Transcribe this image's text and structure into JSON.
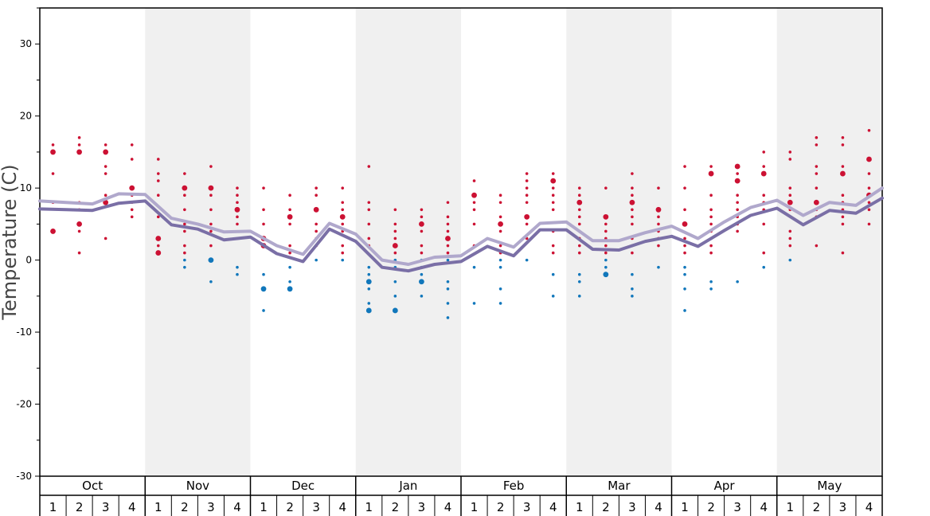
{
  "chart_data": {
    "type": "line",
    "ylabel": "Temperature (C)",
    "ylim": [
      -30,
      35
    ],
    "yticks": [
      30,
      20,
      10,
      0,
      -10,
      -20,
      -30
    ],
    "months": [
      "Oct",
      "Nov",
      "Dec",
      "Jan",
      "Feb",
      "Mar",
      "Apr",
      "May"
    ],
    "weeks": [
      "1",
      "2",
      "3",
      "4"
    ],
    "colors": {
      "upper_line": "#b0a8cc",
      "lower_line": "#7a6fa6",
      "warm_points": "#cc1133",
      "cold_points": "#1177bb",
      "shade": "#f0f0f0"
    },
    "series": [
      {
        "values": [
          8.2,
          8.0,
          7.8,
          9.2,
          9.1,
          5.8,
          5.0,
          3.9,
          4.0,
          2.0,
          0.8,
          5.1,
          3.6,
          0.0,
          -0.6,
          0.4,
          0.6,
          3.0,
          1.8,
          5.1,
          5.3,
          2.7,
          2.7,
          3.8,
          4.7,
          3.0,
          5.3,
          7.3,
          8.3,
          6.2,
          8.0,
          7.6,
          10.0
        ]
      },
      {
        "values": [
          7.1,
          7.0,
          6.9,
          7.9,
          8.2,
          4.9,
          4.3,
          2.8,
          3.2,
          0.9,
          -0.2,
          4.3,
          2.6,
          -1.0,
          -1.5,
          -0.6,
          -0.2,
          1.9,
          0.6,
          4.2,
          4.2,
          1.5,
          1.4,
          2.6,
          3.3,
          1.9,
          4.1,
          6.2,
          7.2,
          4.9,
          6.9,
          6.5,
          8.6
        ]
      }
    ],
    "points": [
      {
        "v": [
          16,
          15,
          12,
          8,
          4
        ],
        "big": [
          15,
          4
        ]
      },
      {
        "v": [
          17,
          16,
          15,
          8,
          7,
          5,
          4,
          1
        ],
        "big": [
          15,
          5
        ]
      },
      {
        "v": [
          16,
          15,
          13,
          12,
          9,
          8,
          3
        ],
        "big": [
          15,
          8
        ]
      },
      {
        "v": [
          16,
          14,
          10,
          9,
          8,
          7,
          6
        ],
        "big": [
          10
        ]
      },
      {
        "v": [
          14,
          12,
          11,
          9,
          6,
          3,
          2,
          1
        ],
        "big": [
          3,
          1
        ]
      },
      {
        "v": [
          12,
          10,
          9,
          7,
          5,
          4,
          2,
          1,
          0,
          -1
        ],
        "big": [
          10
        ]
      },
      {
        "v": [
          13,
          10,
          9,
          7,
          5,
          4,
          2,
          0,
          -3
        ],
        "big": [
          10,
          0
        ]
      },
      {
        "v": [
          10,
          9,
          8,
          7,
          6,
          5,
          -1,
          -2
        ],
        "big": [
          7
        ]
      },
      {
        "v": [
          10,
          7,
          5,
          3,
          2,
          -2,
          -4,
          -7
        ],
        "big": [
          3,
          2,
          -4
        ]
      },
      {
        "v": [
          9,
          7,
          6,
          5,
          2,
          1,
          -1,
          -3,
          -4
        ],
        "big": [
          6,
          -4
        ]
      },
      {
        "v": [
          10,
          9,
          7,
          5,
          4,
          3,
          2,
          0
        ],
        "big": [
          7
        ]
      },
      {
        "v": [
          10,
          8,
          7,
          6,
          5,
          4,
          2,
          1,
          0
        ],
        "big": [
          6
        ]
      },
      {
        "v": [
          13,
          8,
          7,
          5,
          3,
          2,
          -1,
          -2,
          -3,
          -4,
          -6,
          -7
        ],
        "big": [
          -3,
          -7
        ]
      },
      {
        "v": [
          7,
          5,
          4,
          3,
          2,
          1,
          0,
          -1,
          -3,
          -5,
          -7
        ],
        "big": [
          2,
          -7
        ]
      },
      {
        "v": [
          7,
          6,
          5,
          4,
          2,
          1,
          0,
          -1,
          -2,
          -3,
          -5
        ],
        "big": [
          5,
          -3
        ]
      },
      {
        "v": [
          8,
          6,
          5,
          4,
          3,
          2,
          1,
          0,
          -3,
          -4,
          -6,
          -8
        ],
        "big": [
          3
        ]
      },
      {
        "v": [
          11,
          9,
          8,
          7,
          5,
          2,
          -1,
          -6
        ],
        "big": [
          9
        ]
      },
      {
        "v": [
          9,
          8,
          6,
          5,
          4,
          2,
          1,
          0,
          -1,
          -4,
          -6
        ],
        "big": [
          5
        ]
      },
      {
        "v": [
          12,
          11,
          10,
          9,
          8,
          6,
          5,
          3,
          0
        ],
        "big": [
          6
        ]
      },
      {
        "v": [
          12,
          11,
          10,
          9,
          8,
          7,
          4,
          2,
          1,
          -2,
          -5
        ],
        "big": [
          11
        ]
      },
      {
        "v": [
          10,
          9,
          8,
          7,
          6,
          5,
          4,
          3,
          2,
          1,
          -2,
          -3,
          -5
        ],
        "big": [
          8
        ]
      },
      {
        "v": [
          10,
          6,
          5,
          4,
          3,
          2,
          1,
          0,
          -1,
          -2
        ],
        "big": [
          6,
          -2
        ]
      },
      {
        "v": [
          12,
          10,
          9,
          8,
          7,
          6,
          5,
          3,
          2,
          1,
          -2,
          -4,
          -5
        ],
        "big": [
          8
        ]
      },
      {
        "v": [
          10,
          7,
          6,
          5,
          4,
          3,
          2,
          -1
        ],
        "big": [
          7
        ]
      },
      {
        "v": [
          13,
          10,
          7,
          5,
          3,
          2,
          1,
          -1,
          -2,
          -4,
          -7
        ],
        "big": [
          5
        ]
      },
      {
        "v": [
          13,
          12,
          9,
          7,
          6,
          5,
          4,
          3,
          2,
          1,
          -3,
          -4
        ],
        "big": [
          12
        ]
      },
      {
        "v": [
          13,
          12,
          11,
          9,
          8,
          7,
          6,
          5,
          4,
          -3
        ],
        "big": [
          13,
          11
        ]
      },
      {
        "v": [
          15,
          13,
          12,
          9,
          8,
          7,
          5,
          1,
          -1
        ],
        "big": [
          12
        ]
      },
      {
        "v": [
          15,
          14,
          10,
          9,
          8,
          7,
          4,
          3,
          2,
          0
        ],
        "big": [
          8
        ]
      },
      {
        "v": [
          17,
          16,
          13,
          12,
          10,
          8,
          7,
          6,
          2
        ],
        "big": [
          8
        ]
      },
      {
        "v": [
          17,
          16,
          13,
          12,
          9,
          8,
          7,
          6,
          5,
          1
        ],
        "big": [
          12
        ]
      },
      {
        "v": [
          18,
          14,
          12,
          10,
          9,
          8,
          7,
          5
        ],
        "big": [
          14,
          9
        ]
      }
    ]
  }
}
